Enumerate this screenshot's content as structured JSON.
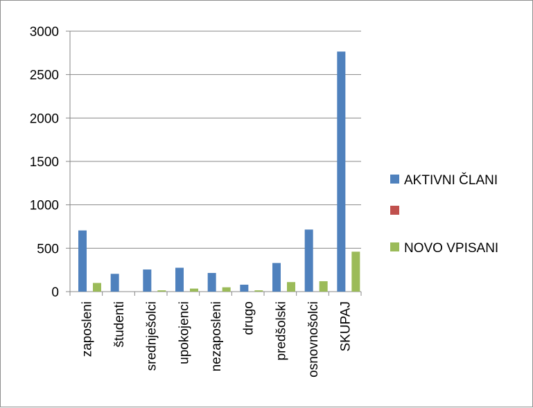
{
  "chart_data": {
    "type": "bar",
    "title": "",
    "xlabel": "",
    "ylabel": "",
    "categories": [
      "zaposleni",
      "študenti",
      "srednješolci",
      "upokojenci",
      "nezaposleni",
      "drugo",
      "predšolski",
      "osnovnošolci",
      "SKUPAJ"
    ],
    "series": [
      {
        "name": "AKTIVNI ČLANI",
        "color": "#4f81bd",
        "values": [
          705,
          205,
          255,
          275,
          215,
          80,
          330,
          715,
          2765
        ]
      },
      {
        "name": "",
        "color": "#c0504d",
        "values": [
          0,
          0,
          0,
          0,
          0,
          0,
          0,
          0,
          0
        ]
      },
      {
        "name": "NOVO VPISANI",
        "color": "#9bbb59",
        "values": [
          100,
          0,
          15,
          35,
          50,
          15,
          110,
          120,
          460
        ]
      }
    ],
    "ylim": [
      0,
      3000
    ],
    "yticks": [
      0,
      500,
      1000,
      1500,
      2000,
      2500,
      3000
    ],
    "grid": true,
    "legend_position": "right"
  }
}
